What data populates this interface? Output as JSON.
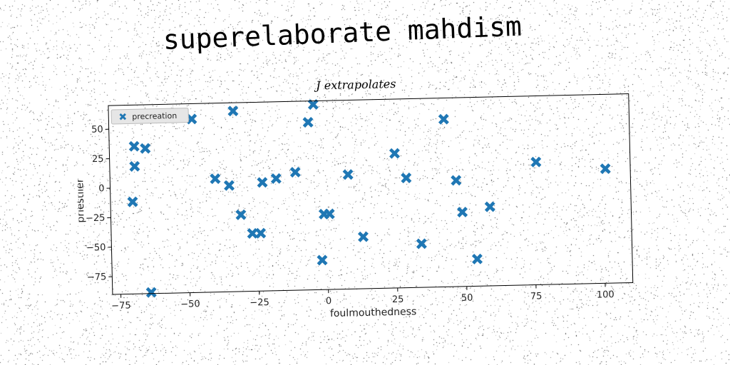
{
  "header": {
    "title": "superelaborate mahdism"
  },
  "chart_data": {
    "type": "scatter",
    "title": "J extrapolates",
    "xlabel": "foulmouthedness",
    "ylabel": "priestlier",
    "xlim": [
      -78,
      110
    ],
    "ylim": [
      -90,
      70
    ],
    "xticks": [
      -75,
      -50,
      -25,
      0,
      25,
      50,
      75,
      100
    ],
    "yticks": [
      -75,
      -50,
      -25,
      0,
      25,
      50
    ],
    "grid": false,
    "legend": {
      "position": "top-left"
    },
    "series": [
      {
        "name": "precreation",
        "color": "#1f77b4",
        "marker": "x-filled",
        "points": [
          {
            "x": -70,
            "y": -12
          },
          {
            "x": -69,
            "y": 35
          },
          {
            "x": -69,
            "y": 18
          },
          {
            "x": -65,
            "y": 33
          },
          {
            "x": -64,
            "y": -89
          },
          {
            "x": -48,
            "y": 57
          },
          {
            "x": -40,
            "y": 6
          },
          {
            "x": -35,
            "y": 0
          },
          {
            "x": -33,
            "y": 63
          },
          {
            "x": -31,
            "y": -25
          },
          {
            "x": -27,
            "y": -41
          },
          {
            "x": -24,
            "y": -41
          },
          {
            "x": -23,
            "y": 2
          },
          {
            "x": -18,
            "y": 5
          },
          {
            "x": -11,
            "y": 10
          },
          {
            "x": -6,
            "y": 52
          },
          {
            "x": -4,
            "y": 67
          },
          {
            "x": -2,
            "y": -65
          },
          {
            "x": -1,
            "y": -26
          },
          {
            "x": 1,
            "y": -26
          },
          {
            "x": 8,
            "y": 7
          },
          {
            "x": 13,
            "y": -46
          },
          {
            "x": 25,
            "y": 24
          },
          {
            "x": 29,
            "y": 3
          },
          {
            "x": 34,
            "y": -53
          },
          {
            "x": 43,
            "y": 52
          },
          {
            "x": 47,
            "y": 0
          },
          {
            "x": 49,
            "y": -27
          },
          {
            "x": 54,
            "y": -67
          },
          {
            "x": 59,
            "y": -23
          },
          {
            "x": 76,
            "y": 14
          },
          {
            "x": 101,
            "y": 7
          }
        ]
      }
    ]
  }
}
